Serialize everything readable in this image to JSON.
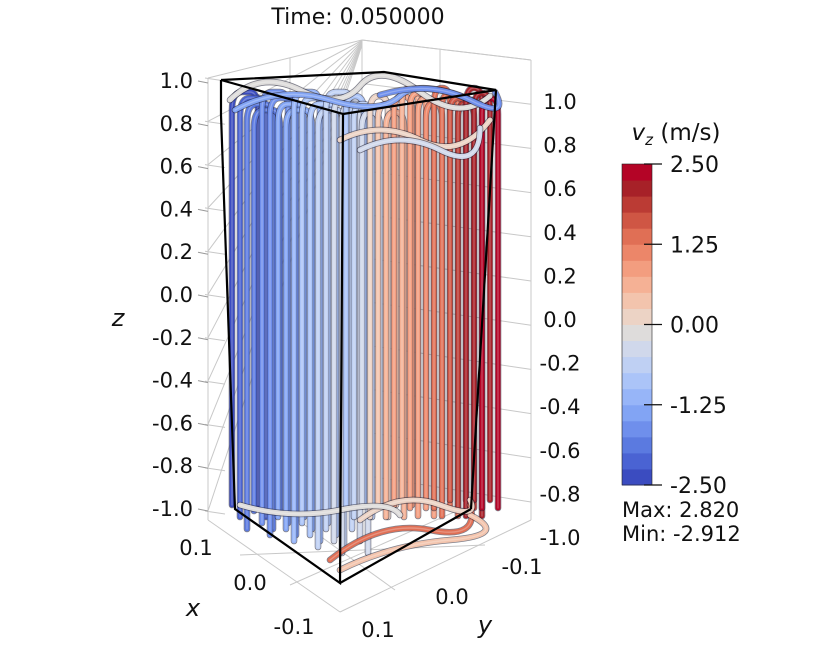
{
  "title": "Time: 0.050000",
  "axes": {
    "z": {
      "label": "z",
      "ticks": [
        "1.0",
        "0.8",
        "0.6",
        "0.4",
        "0.2",
        "0.0",
        "-0.2",
        "-0.4",
        "-0.6",
        "-0.8",
        "-1.0"
      ]
    },
    "z_right": {
      "ticks": [
        "1.0",
        "0.8",
        "0.6",
        "0.4",
        "0.2",
        "0.0",
        "-0.2",
        "-0.4",
        "-0.6",
        "-0.8",
        "-1.0"
      ]
    },
    "x": {
      "label": "x",
      "ticks": [
        "0.1",
        "0.0",
        "-0.1"
      ]
    },
    "y": {
      "label": "y",
      "ticks": [
        "-0.1",
        "0.0",
        "0.1"
      ]
    }
  },
  "colorbar": {
    "label_var": "v",
    "label_sub": "z",
    "label_unit": " (m/s)",
    "ticks": [
      "2.50",
      "1.25",
      "0.00",
      "-1.25",
      "-2.50"
    ],
    "max_text": "Max: 2.820",
    "min_text": "Min: -2.912",
    "colors": [
      "#3b4cc0",
      "#4a63d3",
      "#5b7ae0",
      "#6f8fec",
      "#82a4f4",
      "#97b5f8",
      "#abc4f8",
      "#bfd0f3",
      "#d0d8eb",
      "#dedcdb",
      "#ecd3c5",
      "#f3c4ad",
      "#f5b195",
      "#f39d7f",
      "#ec8669",
      "#e06f55",
      "#cf5644",
      "#bb3b34",
      "#a72128",
      "#b40426"
    ]
  }
}
